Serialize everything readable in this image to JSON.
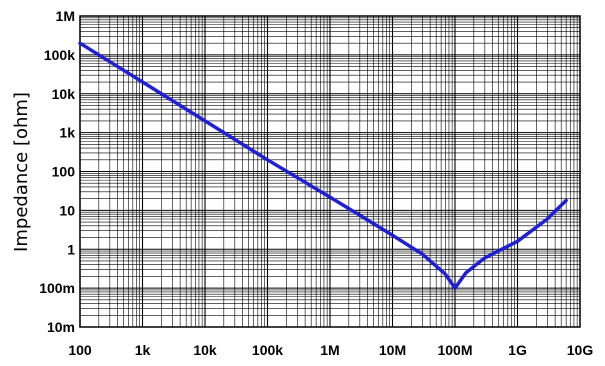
{
  "chart_data": {
    "type": "line",
    "title": "",
    "xlabel": "",
    "ylabel": "Impedance [ohm]",
    "x_scale": "log",
    "y_scale": "log",
    "xlim": [
      100,
      10000000000
    ],
    "ylim": [
      0.01,
      1000000
    ],
    "grid": true,
    "x_tick_labels": [
      "100",
      "1k",
      "10k",
      "100k",
      "1M",
      "10M",
      "100M",
      "1G",
      "10G"
    ],
    "y_tick_labels": [
      "1M",
      "100k",
      "10k",
      "1k",
      "100",
      "10",
      "1",
      "100m",
      "10m"
    ],
    "colors": {
      "line": "#1f1fd6",
      "grid": "#000000",
      "frame": "#000000"
    },
    "series": [
      {
        "x": [
          100,
          1000,
          10000,
          100000,
          1000000,
          10000000,
          30000000,
          70000000,
          100000000,
          150000000,
          300000000,
          1000000000,
          3000000000,
          6000000000
        ],
        "y": [
          200000,
          20000,
          2000,
          200,
          22,
          2.3,
          0.75,
          0.23,
          0.1,
          0.25,
          0.6,
          1.6,
          6,
          18
        ]
      }
    ]
  }
}
